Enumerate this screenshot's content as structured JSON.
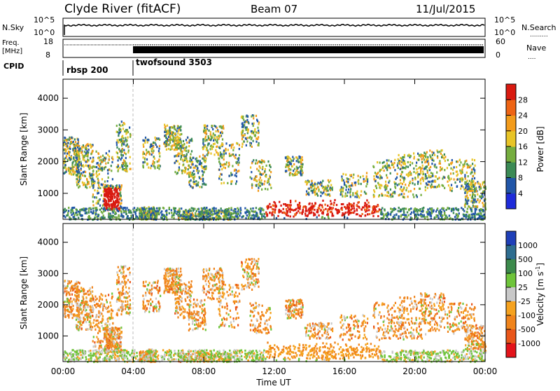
{
  "header": {
    "title": "Clyde River (fitACF)",
    "beam": "Beam 07",
    "date": "11/Jul/2015"
  },
  "strips": {
    "nsky_label": "N.Sky",
    "nsearch_label": "N.Search",
    "nsky_ticks": [
      "10^5",
      "10^0"
    ],
    "nsearch_ticks": [
      "10^5",
      "10^0"
    ],
    "freq_label_1": "Freq.",
    "freq_label_2": "[MHz]",
    "freq_ticks": [
      "18",
      "8"
    ],
    "nave_label": "Nave",
    "nave_ticks": [
      "60",
      "0"
    ],
    "cpid_label": "CPID",
    "cpid_segments": [
      {
        "name": "rbsp 200",
        "start_hour": 0.0
      },
      {
        "name": "twofsound 3503",
        "start_hour": 4.0
      }
    ]
  },
  "chart_data": [
    {
      "type": "heatmap",
      "panel": "power",
      "ylabel": "Slant Range [km]",
      "yticks": [
        1000,
        2000,
        3000,
        4000
      ],
      "ylim": [
        180,
        4600
      ],
      "xlim_hours": [
        0,
        24
      ],
      "colorbar_label": "Power [dB]",
      "colorbar_ticks": [
        4,
        8,
        12,
        16,
        20,
        24,
        28
      ],
      "colorbar_range": [
        0,
        32
      ],
      "colors": [
        "#1e2bd9",
        "#2156a8",
        "#3b8a55",
        "#75ad3f",
        "#e8c427",
        "#f29b1b",
        "#ee6414",
        "#d91a10"
      ]
    },
    {
      "type": "heatmap",
      "panel": "velocity",
      "ylabel": "Slant Range [km]",
      "yticks": [
        1000,
        2000,
        3000,
        4000
      ],
      "ylim": [
        180,
        4600
      ],
      "xlim_hours": [
        0,
        24
      ],
      "xticks": [
        "00:00",
        "04:00",
        "08:00",
        "12:00",
        "16:00",
        "20:00",
        "00:00"
      ],
      "xlabel": "Time UT",
      "colorbar_label": "Velocity [m s^-1]",
      "colorbar_ticks": [
        "1000",
        "500",
        "100",
        "25",
        "-25",
        "-100",
        "-500",
        "-1000"
      ],
      "colors": [
        "#1f3fb8",
        "#2e6d8f",
        "#3c8a4c",
        "#6ec43a",
        "#c8c8c8",
        "#f5a21f",
        "#f0841c",
        "#e9561a",
        "#e3131a"
      ]
    }
  ],
  "velocity_label_parts": {
    "main": "Velocity [m s",
    "sup": "-1",
    "end": "]"
  }
}
